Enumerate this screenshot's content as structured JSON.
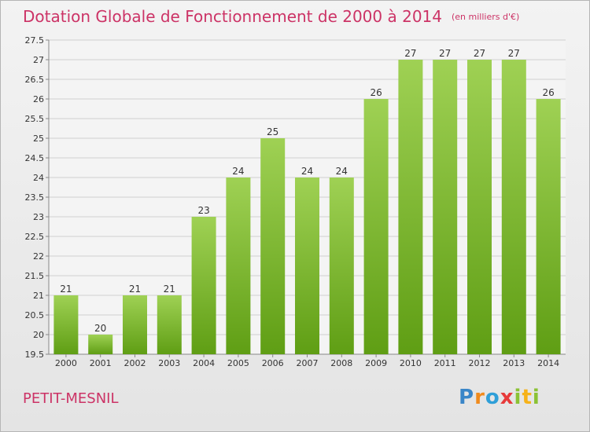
{
  "header": {
    "title": "Dotation Globale de Fonctionnement de 2000 à 2014",
    "unit": "(en milliers d'€)"
  },
  "footer": {
    "city": "PETIT-MESNIL",
    "brand": "Proxiti"
  },
  "colors": {
    "title": "#cc3366",
    "bar_light": "#9fd154",
    "bar_dark": "#5f9e14",
    "grid": "#cfcfcf",
    "axis_text": "#333333"
  },
  "chart_data": {
    "type": "bar",
    "categories": [
      "2000",
      "2001",
      "2002",
      "2003",
      "2004",
      "2005",
      "2006",
      "2007",
      "2008",
      "2009",
      "2010",
      "2011",
      "2012",
      "2013",
      "2014"
    ],
    "values": [
      21,
      20,
      21,
      21,
      23,
      24,
      25,
      24,
      24,
      26,
      27,
      27,
      27,
      27,
      26
    ],
    "title": "Dotation Globale de Fonctionnement de 2000 à 2014",
    "xlabel": "",
    "ylabel": "",
    "ylim": [
      19.5,
      27.5
    ],
    "yticks": [
      19.5,
      20,
      20.5,
      21,
      21.5,
      22,
      22.5,
      23,
      23.5,
      24,
      24.5,
      25,
      25.5,
      26,
      26.5,
      27,
      27.5
    ],
    "grid": true
  }
}
